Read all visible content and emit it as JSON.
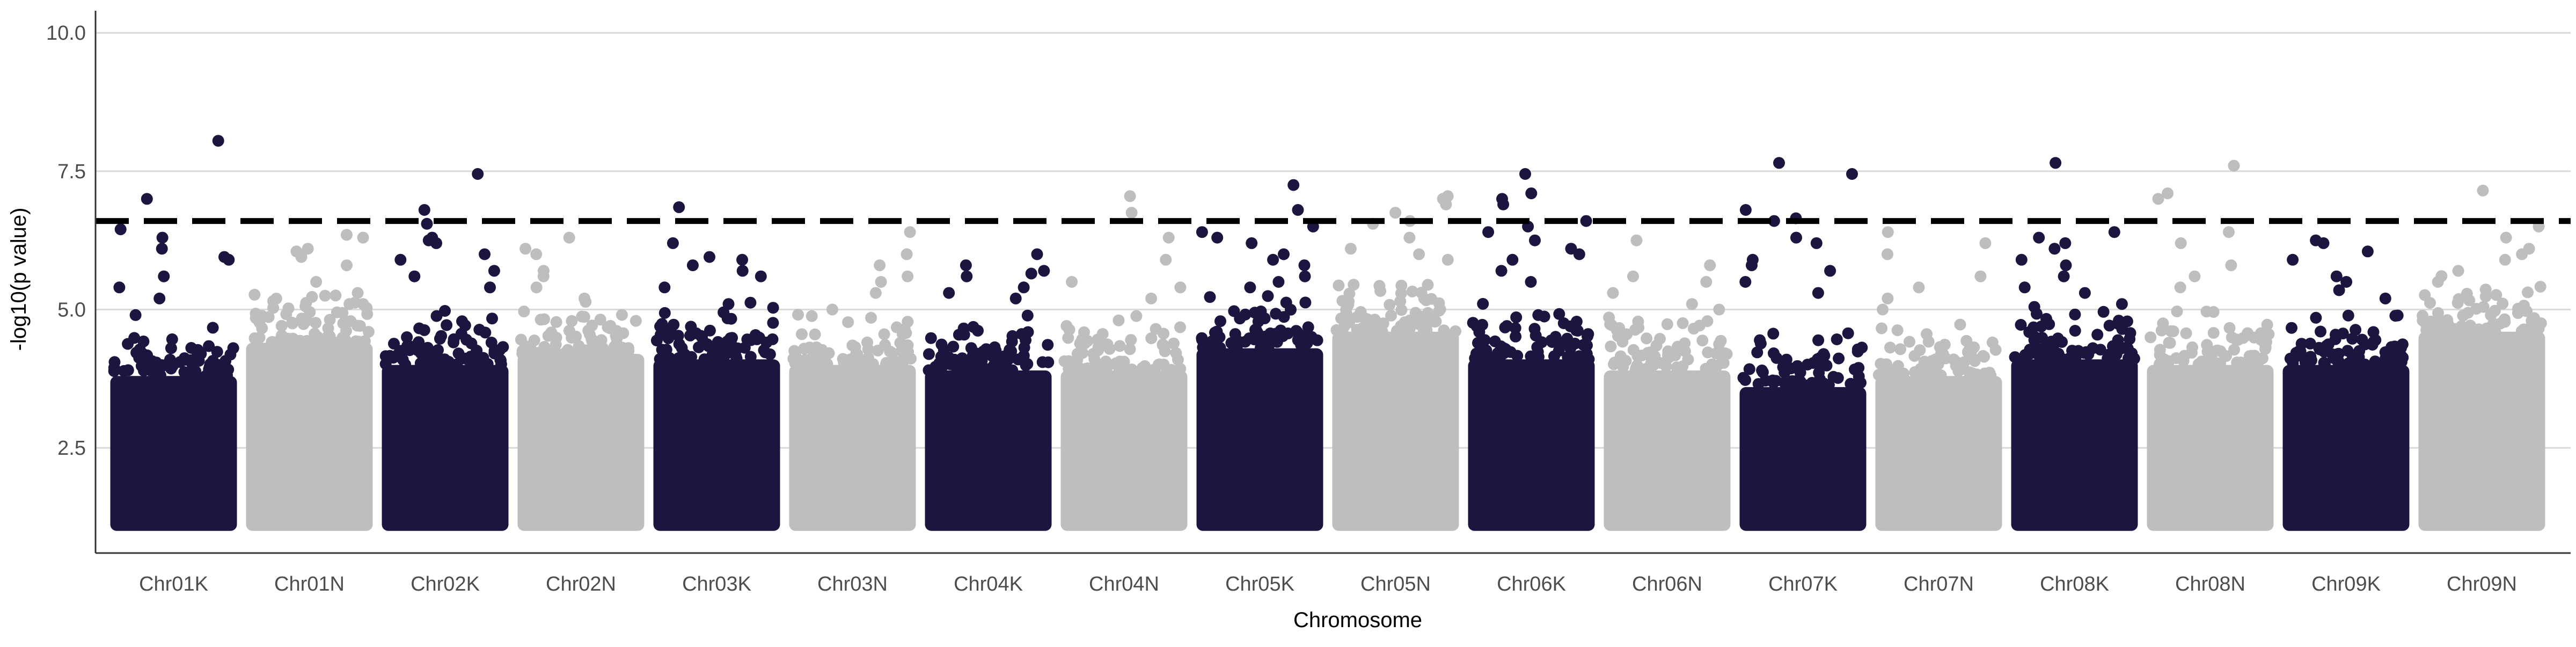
{
  "chart_data": {
    "type": "scatter",
    "title": "",
    "xlabel": "Chromosome",
    "ylabel": "-log10(p value)",
    "ylim": [
      0.6,
      10.4
    ],
    "yticks": [
      "2.5",
      "5.0",
      "7.5",
      "10.0"
    ],
    "ytick_values": [
      2.5,
      5.0,
      7.5,
      10.0
    ],
    "grid": "horizontal",
    "threshold": 6.6,
    "colors": {
      "dark": "#1e1440",
      "light": "#bebebe",
      "threshold": "#000000",
      "grid": "#d9d9d9"
    },
    "point_floor": 1.0,
    "chromosomes": [
      {
        "name": "Chr01K",
        "color": "dark",
        "dense_top": 3.8,
        "peaks": [
          8.05,
          7.0,
          6.45,
          6.3,
          6.1,
          5.95,
          5.9,
          5.4,
          5.6,
          5.2,
          4.9
        ]
      },
      {
        "name": "Chr01N",
        "color": "light",
        "dense_top": 4.4,
        "peaks": [
          6.35,
          6.3,
          6.1,
          6.05,
          5.95,
          5.8,
          5.5,
          5.3,
          5.1
        ]
      },
      {
        "name": "Chr02K",
        "color": "dark",
        "dense_top": 4.0,
        "peaks": [
          7.45,
          6.8,
          6.55,
          6.3,
          6.25,
          6.2,
          6.0,
          5.9,
          5.7,
          5.6,
          5.4
        ]
      },
      {
        "name": "Chr02N",
        "color": "light",
        "dense_top": 4.2,
        "peaks": [
          6.3,
          6.1,
          6.0,
          5.7,
          5.6,
          5.4,
          5.2
        ]
      },
      {
        "name": "Chr03K",
        "color": "dark",
        "dense_top": 4.1,
        "peaks": [
          6.85,
          6.2,
          5.95,
          5.9,
          5.8,
          5.7,
          5.6,
          5.4,
          5.1
        ]
      },
      {
        "name": "Chr03N",
        "color": "light",
        "dense_top": 4.0,
        "peaks": [
          6.4,
          6.0,
          5.8,
          5.6,
          5.5,
          5.3,
          5.0
        ]
      },
      {
        "name": "Chr04K",
        "color": "dark",
        "dense_top": 3.9,
        "peaks": [
          6.0,
          5.8,
          5.7,
          5.65,
          5.6,
          5.4,
          5.3,
          5.2
        ]
      },
      {
        "name": "Chr04N",
        "color": "light",
        "dense_top": 3.9,
        "peaks": [
          7.05,
          6.75,
          6.3,
          5.9,
          5.5,
          5.4,
          5.2
        ]
      },
      {
        "name": "Chr05K",
        "color": "dark",
        "dense_top": 4.3,
        "peaks": [
          7.25,
          6.8,
          6.5,
          6.4,
          6.3,
          6.2,
          6.0,
          5.9,
          5.8,
          5.6,
          5.5,
          5.4
        ]
      },
      {
        "name": "Chr05N",
        "color": "light",
        "dense_top": 4.6,
        "peaks": [
          7.05,
          7.0,
          6.9,
          6.75,
          6.6,
          6.55,
          6.3,
          6.1,
          6.0,
          5.9
        ]
      },
      {
        "name": "Chr06K",
        "color": "dark",
        "dense_top": 4.1,
        "peaks": [
          7.45,
          7.1,
          7.0,
          6.9,
          6.6,
          6.5,
          6.4,
          6.25,
          6.1,
          6.0,
          5.9,
          5.7,
          5.5
        ]
      },
      {
        "name": "Chr06N",
        "color": "light",
        "dense_top": 3.9,
        "peaks": [
          6.25,
          5.8,
          5.6,
          5.5,
          5.3,
          5.1,
          5.0
        ]
      },
      {
        "name": "Chr07K",
        "color": "dark",
        "dense_top": 3.6,
        "peaks": [
          7.65,
          7.45,
          6.8,
          6.65,
          6.6,
          6.3,
          6.2,
          5.9,
          5.8,
          5.7,
          5.5,
          5.3
        ]
      },
      {
        "name": "Chr07N",
        "color": "light",
        "dense_top": 3.8,
        "peaks": [
          6.4,
          6.2,
          6.0,
          5.6,
          5.4,
          5.2,
          5.0
        ]
      },
      {
        "name": "Chr08K",
        "color": "dark",
        "dense_top": 4.1,
        "peaks": [
          7.65,
          6.4,
          6.3,
          6.2,
          6.1,
          5.9,
          5.8,
          5.6,
          5.4,
          5.3,
          5.1
        ]
      },
      {
        "name": "Chr08N",
        "color": "light",
        "dense_top": 4.0,
        "peaks": [
          7.6,
          7.1,
          7.0,
          6.4,
          6.2,
          5.8,
          5.6,
          5.4
        ]
      },
      {
        "name": "Chr09K",
        "color": "dark",
        "dense_top": 4.0,
        "peaks": [
          6.25,
          6.2,
          6.05,
          5.9,
          5.6,
          5.5,
          5.35,
          5.2
        ]
      },
      {
        "name": "Chr09N",
        "color": "light",
        "dense_top": 4.6,
        "peaks": [
          7.15,
          6.5,
          6.3,
          6.1,
          6.0,
          5.9,
          5.7,
          5.5
        ]
      }
    ]
  }
}
